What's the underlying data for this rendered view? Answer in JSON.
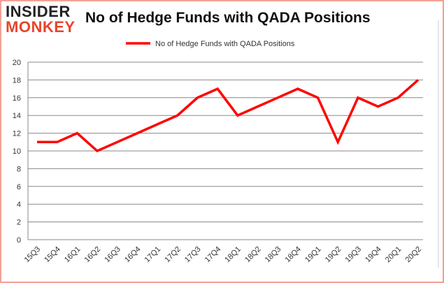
{
  "logo": {
    "line1": "INSIDER",
    "line2": "MONKEY"
  },
  "chart_data": {
    "type": "line",
    "title": "No of Hedge Funds with QADA Positions",
    "xlabel": "",
    "ylabel": "",
    "categories": [
      "15Q3",
      "15Q4",
      "16Q1",
      "16Q2",
      "16Q3",
      "16Q4",
      "17Q1",
      "17Q2",
      "17Q3",
      "17Q4",
      "18Q1",
      "18Q2",
      "18Q3",
      "18Q4",
      "19Q1",
      "19Q2",
      "19Q3",
      "19Q4",
      "20Q1",
      "20Q2"
    ],
    "series": [
      {
        "name": "No of Hedge Funds with QADA Positions",
        "color": "#ff0000",
        "values": [
          11,
          11,
          12,
          10,
          11,
          12,
          13,
          14,
          16,
          17,
          14,
          15,
          16,
          17,
          16,
          11,
          16,
          15,
          16,
          18
        ]
      }
    ],
    "ylim": [
      0,
      20
    ],
    "yticks": [
      0,
      2,
      4,
      6,
      8,
      10,
      12,
      14,
      16,
      18,
      20
    ],
    "grid": true,
    "legend": "top-center"
  }
}
